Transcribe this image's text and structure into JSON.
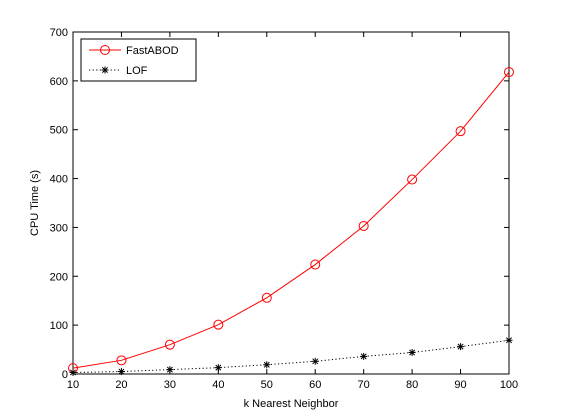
{
  "chart_data": {
    "type": "line",
    "title": "",
    "xlabel": "k Nearest Neighbor",
    "ylabel": "CPU Time (s)",
    "xlim": [
      10,
      100
    ],
    "ylim": [
      0,
      700
    ],
    "x_ticks": [
      10,
      20,
      30,
      40,
      50,
      60,
      70,
      80,
      90,
      100
    ],
    "y_ticks": [
      0,
      100,
      200,
      300,
      400,
      500,
      600,
      700
    ],
    "grid": false,
    "legend_position": "top-left",
    "x": [
      10,
      20,
      30,
      40,
      50,
      60,
      70,
      80,
      90,
      100
    ],
    "series": [
      {
        "name": "FastABOD",
        "color": "#ff0000",
        "marker": "circle",
        "line_style": "solid",
        "values": [
          12,
          28,
          60,
          101,
          156,
          224,
          303,
          398,
          497,
          618
        ]
      },
      {
        "name": "LOF",
        "color": "#000000",
        "marker": "star",
        "line_style": "dotted",
        "values": [
          3,
          5,
          9,
          13,
          19,
          26,
          36,
          44,
          56,
          69
        ]
      }
    ]
  }
}
